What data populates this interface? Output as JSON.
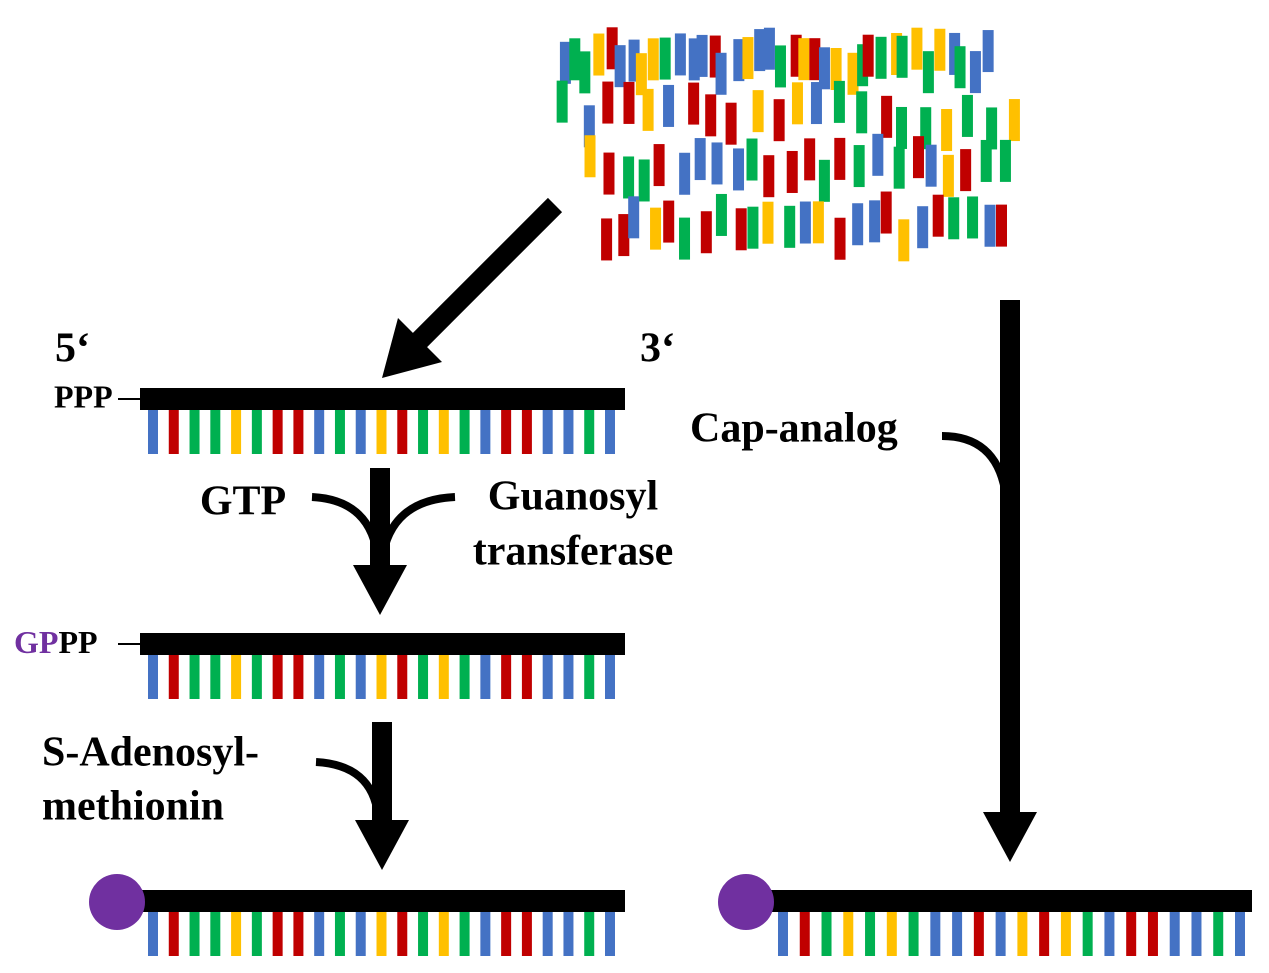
{
  "labels": {
    "five_prime": "5‘",
    "three_prime": "3‘",
    "ppp": "PPP",
    "gp": "GP",
    "pp": "PP",
    "gtp": "GTP",
    "enzyme": [
      "Guanosyl",
      "transferase"
    ],
    "sam": [
      "S-Adenosyl-",
      "methionin"
    ],
    "cap_analog": "Cap-analog"
  }
}
